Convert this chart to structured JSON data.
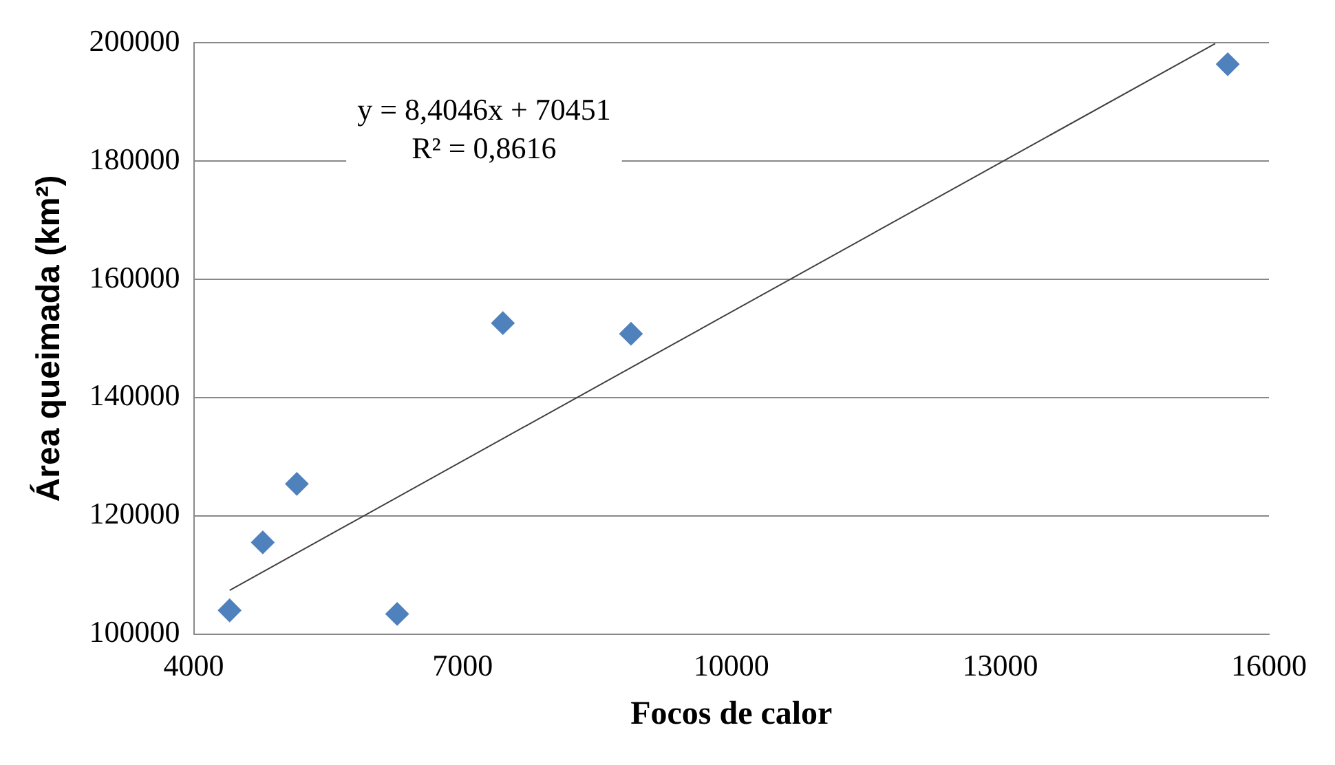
{
  "chart_data": {
    "type": "scatter",
    "xlabel": "Focos de calor",
    "ylabel": "Área queimada (km²)",
    "xlim": [
      4000,
      16000
    ],
    "xticks": [
      4000,
      7000,
      10000,
      13000,
      16000
    ],
    "ylim": [
      100000,
      200000
    ],
    "yticks": [
      100000,
      120000,
      140000,
      160000,
      180000,
      200000
    ],
    "grid": "y",
    "legend": false,
    "marker": "diamond",
    "annotations": [
      "y = 8,4046x + 70451",
      "R² = 0,8616"
    ],
    "series": [
      {
        "color": "#4f81bd",
        "x": [
          4400,
          4770,
          5150,
          6270,
          7450,
          8880,
          15540
        ],
        "values": [
          104000,
          115500,
          125400,
          103400,
          152600,
          150800,
          196400
        ]
      },
      {
        "type": "line",
        "color": "#404040",
        "x": [
          4400,
          15400
        ],
        "values": [
          107400,
          199900
        ],
        "marker": "none"
      }
    ]
  }
}
